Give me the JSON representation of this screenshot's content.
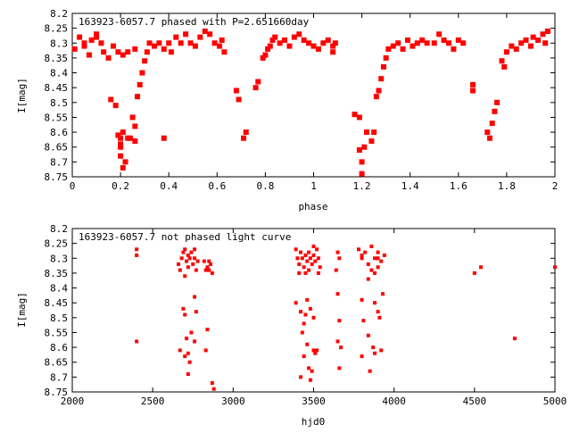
{
  "chart_data": [
    {
      "type": "scatter",
      "title": "163923-6057.7 phased with P=2.651660day",
      "xlabel": "phase",
      "ylabel": "I[mag]",
      "xlim": [
        0,
        2
      ],
      "ylim": [
        8.2,
        8.75
      ],
      "y_inverted": true,
      "xticks": [
        "0",
        "0.2",
        "0.4",
        "0.6",
        "0.8",
        "1",
        "1.2",
        "1.4",
        "1.6",
        "1.8",
        "2"
      ],
      "yticks": [
        "8.2",
        "8.25",
        "8.3",
        "8.35",
        "8.4",
        "8.45",
        "8.5",
        "8.55",
        "8.6",
        "8.65",
        "8.7",
        "8.75"
      ],
      "marker_color": "#ff0000",
      "points": [
        [
          0.01,
          8.32
        ],
        [
          0.03,
          8.28
        ],
        [
          0.05,
          8.31
        ],
        [
          0.07,
          8.34
        ],
        [
          0.08,
          8.29
        ],
        [
          0.1,
          8.27
        ],
        [
          0.12,
          8.3
        ],
        [
          0.13,
          8.33
        ],
        [
          0.15,
          8.35
        ],
        [
          0.17,
          8.31
        ],
        [
          0.19,
          8.33
        ],
        [
          0.21,
          8.34
        ],
        [
          0.23,
          8.33
        ],
        [
          0.26,
          8.32
        ],
        [
          0.1,
          8.28
        ],
        [
          0.05,
          8.3
        ],
        [
          0.16,
          8.49
        ],
        [
          0.18,
          8.51
        ],
        [
          0.19,
          8.61
        ],
        [
          0.2,
          8.62
        ],
        [
          0.2,
          8.64
        ],
        [
          0.2,
          8.68
        ],
        [
          0.21,
          8.72
        ],
        [
          0.22,
          8.7
        ],
        [
          0.2,
          8.65
        ],
        [
          0.21,
          8.6
        ],
        [
          0.23,
          8.62
        ],
        [
          0.25,
          8.55
        ],
        [
          0.26,
          8.58
        ],
        [
          0.27,
          8.48
        ],
        [
          0.28,
          8.44
        ],
        [
          0.29,
          8.4
        ],
        [
          0.24,
          8.62
        ],
        [
          0.26,
          8.63
        ],
        [
          0.3,
          8.36
        ],
        [
          0.31,
          8.33
        ],
        [
          0.32,
          8.3
        ],
        [
          0.34,
          8.31
        ],
        [
          0.36,
          8.3
        ],
        [
          0.38,
          8.32
        ],
        [
          0.4,
          8.3
        ],
        [
          0.41,
          8.33
        ],
        [
          0.43,
          8.28
        ],
        [
          0.45,
          8.3
        ],
        [
          0.47,
          8.27
        ],
        [
          0.49,
          8.3
        ],
        [
          0.51,
          8.31
        ],
        [
          0.53,
          8.28
        ],
        [
          0.55,
          8.26
        ],
        [
          0.57,
          8.27
        ],
        [
          0.59,
          8.3
        ],
        [
          0.61,
          8.31
        ],
        [
          0.63,
          8.33
        ],
        [
          0.62,
          8.29
        ],
        [
          0.38,
          8.62
        ],
        [
          0.68,
          8.46
        ],
        [
          0.69,
          8.49
        ],
        [
          0.71,
          8.62
        ],
        [
          0.72,
          8.6
        ],
        [
          0.76,
          8.45
        ],
        [
          0.77,
          8.43
        ],
        [
          0.79,
          8.35
        ],
        [
          0.8,
          8.34
        ],
        [
          0.81,
          8.32
        ],
        [
          0.82,
          8.31
        ],
        [
          0.83,
          8.29
        ],
        [
          0.84,
          8.28
        ],
        [
          0.86,
          8.3
        ],
        [
          0.88,
          8.29
        ],
        [
          0.9,
          8.31
        ],
        [
          0.92,
          8.28
        ],
        [
          0.94,
          8.27
        ],
        [
          0.96,
          8.29
        ],
        [
          0.98,
          8.3
        ],
        [
          1.0,
          8.31
        ],
        [
          1.02,
          8.32
        ],
        [
          1.04,
          8.3
        ],
        [
          1.06,
          8.29
        ],
        [
          1.08,
          8.31
        ],
        [
          1.09,
          8.3
        ],
        [
          1.08,
          8.33
        ],
        [
          1.17,
          8.54
        ],
        [
          1.19,
          8.55
        ],
        [
          1.19,
          8.66
        ],
        [
          1.2,
          8.7
        ],
        [
          1.2,
          8.74
        ],
        [
          1.21,
          8.65
        ],
        [
          1.22,
          8.6
        ],
        [
          1.24,
          8.63
        ],
        [
          1.25,
          8.6
        ],
        [
          1.26,
          8.48
        ],
        [
          1.27,
          8.46
        ],
        [
          1.28,
          8.42
        ],
        [
          1.29,
          8.38
        ],
        [
          1.3,
          8.35
        ],
        [
          1.31,
          8.32
        ],
        [
          1.33,
          8.31
        ],
        [
          1.35,
          8.3
        ],
        [
          1.37,
          8.32
        ],
        [
          1.39,
          8.29
        ],
        [
          1.41,
          8.31
        ],
        [
          1.43,
          8.3
        ],
        [
          1.45,
          8.29
        ],
        [
          1.47,
          8.3
        ],
        [
          1.5,
          8.3
        ],
        [
          1.52,
          8.27
        ],
        [
          1.54,
          8.29
        ],
        [
          1.56,
          8.3
        ],
        [
          1.58,
          8.32
        ],
        [
          1.6,
          8.29
        ],
        [
          1.62,
          8.3
        ],
        [
          1.66,
          8.44
        ],
        [
          1.66,
          8.46
        ],
        [
          1.72,
          8.6
        ],
        [
          1.73,
          8.62
        ],
        [
          1.74,
          8.57
        ],
        [
          1.75,
          8.53
        ],
        [
          1.76,
          8.5
        ],
        [
          1.78,
          8.36
        ],
        [
          1.79,
          8.38
        ],
        [
          1.8,
          8.33
        ],
        [
          1.82,
          8.31
        ],
        [
          1.84,
          8.32
        ],
        [
          1.86,
          8.3
        ],
        [
          1.88,
          8.29
        ],
        [
          1.9,
          8.31
        ],
        [
          1.91,
          8.28
        ],
        [
          1.93,
          8.29
        ],
        [
          1.95,
          8.27
        ],
        [
          1.97,
          8.26
        ],
        [
          1.96,
          8.3
        ]
      ]
    },
    {
      "type": "scatter",
      "title": "163923-6057.7 not phased light curve",
      "xlabel": "hjd0",
      "ylabel": "I[mag]",
      "xlim": [
        2000,
        5000
      ],
      "ylim": [
        8.2,
        8.75
      ],
      "y_inverted": true,
      "xticks": [
        "2000",
        "2500",
        "3000",
        "3500",
        "4000",
        "4500",
        "5000"
      ],
      "yticks": [
        "8.2",
        "8.25",
        "8.3",
        "8.35",
        "8.4",
        "8.45",
        "8.5",
        "8.55",
        "8.6",
        "8.65",
        "8.7",
        "8.75"
      ],
      "marker_color": "#ff0000",
      "points": [
        [
          2400,
          8.27
        ],
        [
          2400,
          8.29
        ],
        [
          2400,
          8.58
        ],
        [
          2660,
          8.32
        ],
        [
          2670,
          8.34
        ],
        [
          2680,
          8.3
        ],
        [
          2690,
          8.28
        ],
        [
          2700,
          8.27
        ],
        [
          2710,
          8.31
        ],
        [
          2720,
          8.33
        ],
        [
          2730,
          8.3
        ],
        [
          2740,
          8.28
        ],
        [
          2750,
          8.32
        ],
        [
          2760,
          8.3
        ],
        [
          2770,
          8.34
        ],
        [
          2780,
          8.31
        ],
        [
          2700,
          8.36
        ],
        [
          2720,
          8.29
        ],
        [
          2760,
          8.27
        ],
        [
          2670,
          8.61
        ],
        [
          2690,
          8.47
        ],
        [
          2700,
          8.49
        ],
        [
          2710,
          8.57
        ],
        [
          2720,
          8.62
        ],
        [
          2730,
          8.65
        ],
        [
          2740,
          8.55
        ],
        [
          2760,
          8.43
        ],
        [
          2770,
          8.48
        ],
        [
          2760,
          8.58
        ],
        [
          2700,
          8.63
        ],
        [
          2720,
          8.69
        ],
        [
          2820,
          8.31
        ],
        [
          2840,
          8.33
        ],
        [
          2850,
          8.34
        ],
        [
          2860,
          8.32
        ],
        [
          2870,
          8.35
        ],
        [
          2850,
          8.31
        ],
        [
          2830,
          8.34
        ],
        [
          2840,
          8.54
        ],
        [
          2830,
          8.61
        ],
        [
          2870,
          8.72
        ],
        [
          2880,
          8.74
        ],
        [
          3390,
          8.27
        ],
        [
          3400,
          8.3
        ],
        [
          3410,
          8.32
        ],
        [
          3420,
          8.28
        ],
        [
          3430,
          8.3
        ],
        [
          3440,
          8.33
        ],
        [
          3450,
          8.29
        ],
        [
          3460,
          8.31
        ],
        [
          3470,
          8.28
        ],
        [
          3480,
          8.3
        ],
        [
          3490,
          8.32
        ],
        [
          3500,
          8.29
        ],
        [
          3510,
          8.31
        ],
        [
          3520,
          8.27
        ],
        [
          3530,
          8.3
        ],
        [
          3540,
          8.33
        ],
        [
          3450,
          8.35
        ],
        [
          3470,
          8.34
        ],
        [
          3500,
          8.26
        ],
        [
          3530,
          8.35
        ],
        [
          3410,
          8.35
        ],
        [
          3390,
          8.45
        ],
        [
          3420,
          8.48
        ],
        [
          3440,
          8.52
        ],
        [
          3450,
          8.49
        ],
        [
          3460,
          8.44
        ],
        [
          3480,
          8.47
        ],
        [
          3500,
          8.5
        ],
        [
          3430,
          8.55
        ],
        [
          3460,
          8.59
        ],
        [
          3500,
          8.61
        ],
        [
          3520,
          8.61
        ],
        [
          3440,
          8.63
        ],
        [
          3470,
          8.67
        ],
        [
          3490,
          8.68
        ],
        [
          3510,
          8.62
        ],
        [
          3480,
          8.71
        ],
        [
          3420,
          8.7
        ],
        [
          3650,
          8.28
        ],
        [
          3660,
          8.3
        ],
        [
          3640,
          8.34
        ],
        [
          3650,
          8.42
        ],
        [
          3660,
          8.51
        ],
        [
          3650,
          8.58
        ],
        [
          3670,
          8.6
        ],
        [
          3660,
          8.67
        ],
        [
          3780,
          8.27
        ],
        [
          3800,
          8.3
        ],
        [
          3820,
          8.28
        ],
        [
          3840,
          8.32
        ],
        [
          3860,
          8.26
        ],
        [
          3880,
          8.3
        ],
        [
          3900,
          8.28
        ],
        [
          3920,
          8.31
        ],
        [
          3940,
          8.29
        ],
        [
          3860,
          8.34
        ],
        [
          3880,
          8.35
        ],
        [
          3900,
          8.33
        ],
        [
          3840,
          8.37
        ],
        [
          3800,
          8.29
        ],
        [
          3900,
          8.3
        ],
        [
          3800,
          8.44
        ],
        [
          3810,
          8.51
        ],
        [
          3840,
          8.56
        ],
        [
          3870,
          8.6
        ],
        [
          3880,
          8.62
        ],
        [
          3900,
          8.48
        ],
        [
          3910,
          8.5
        ],
        [
          3920,
          8.61
        ],
        [
          3930,
          8.42
        ],
        [
          3880,
          8.45
        ],
        [
          3800,
          8.63
        ],
        [
          3850,
          8.68
        ],
        [
          4500,
          8.35
        ],
        [
          4540,
          8.33
        ],
        [
          4750,
          8.57
        ],
        [
          5000,
          8.33
        ]
      ]
    }
  ]
}
